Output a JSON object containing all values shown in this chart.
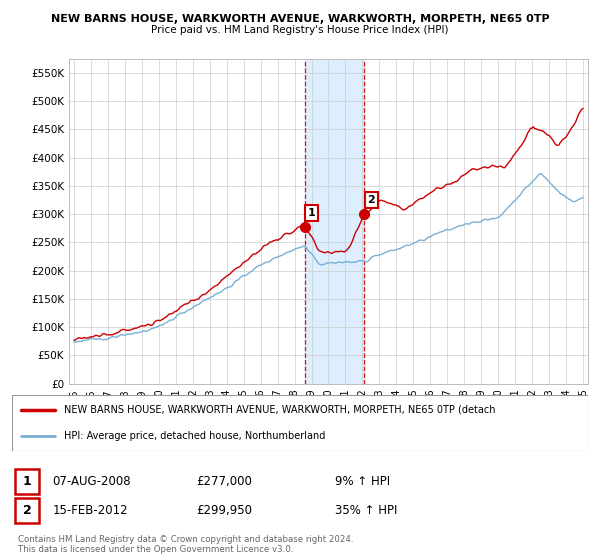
{
  "title1": "NEW BARNS HOUSE, WARKWORTH AVENUE, WARKWORTH, MORPETH, NE65 0TP",
  "title2": "Price paid vs. HM Land Registry's House Price Index (HPI)",
  "ylim": [
    0,
    575000
  ],
  "yticks": [
    0,
    50000,
    100000,
    150000,
    200000,
    250000,
    300000,
    350000,
    400000,
    450000,
    500000,
    550000
  ],
  "ytick_labels": [
    "£0",
    "£50K",
    "£100K",
    "£150K",
    "£200K",
    "£250K",
    "£300K",
    "£350K",
    "£400K",
    "£450K",
    "£500K",
    "£550K"
  ],
  "marker1_date": 2008.6,
  "marker1_label": "1",
  "marker1_price": 277000,
  "marker1_text": "07-AUG-2008",
  "marker1_pct": "9% ↑ HPI",
  "marker2_date": 2012.12,
  "marker2_label": "2",
  "marker2_price": 299950,
  "marker2_text": "15-FEB-2012",
  "marker2_pct": "35% ↑ HPI",
  "legend_line1": "NEW BARNS HOUSE, WARKWORTH AVENUE, WARKWORTH, MORPETH, NE65 0TP (detach",
  "legend_line2": "HPI: Average price, detached house, Northumberland",
  "footer1": "Contains HM Land Registry data © Crown copyright and database right 2024.",
  "footer2": "This data is licensed under the Open Government Licence v3.0.",
  "line_color_red": "#cc0000",
  "line_color_blue": "#7ab0d4",
  "shade_color": "#ddeeff",
  "bg_color": "#ffffff",
  "grid_color": "#cccccc"
}
